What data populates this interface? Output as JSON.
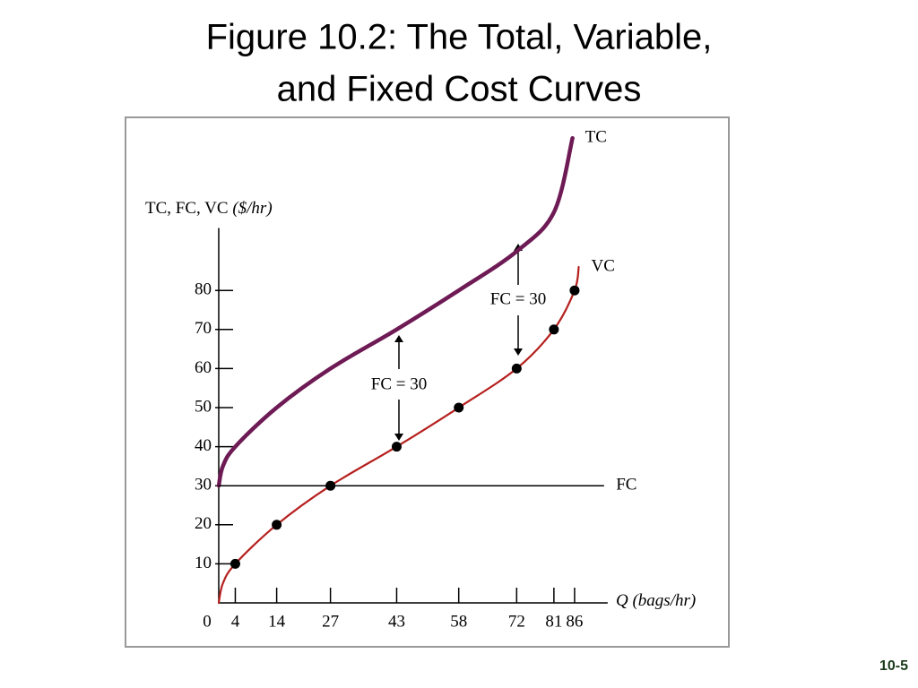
{
  "chart_data": {
    "type": "line",
    "title": [
      "Figure 10.2: The Total, Variable,",
      "and Fixed Cost Curves"
    ],
    "y_label": "TC, FC, VC",
    "y_unit": "($/hr)",
    "x_label": "Q",
    "x_unit": "(bags/hr)",
    "xlim": [
      0,
      94
    ],
    "ylim": [
      0,
      96
    ],
    "xticks": [
      0,
      4,
      14,
      27,
      43,
      58,
      72,
      81,
      86
    ],
    "yticks": [
      10,
      20,
      30,
      40,
      50,
      60,
      70,
      80
    ],
    "series": [
      {
        "name": "TC",
        "color": "#6e1a54",
        "x": [
          0,
          1,
          4,
          14,
          27,
          43,
          58,
          72,
          81,
          85.5
        ],
        "values": [
          30,
          35,
          40,
          50,
          60,
          70,
          80,
          90,
          100,
          119
        ]
      },
      {
        "name": "VC",
        "color": "#b5201e",
        "x": [
          0,
          1,
          4,
          14,
          27,
          43,
          58,
          72,
          81,
          86,
          87
        ],
        "values": [
          0,
          5,
          10,
          20,
          30,
          40,
          50,
          60,
          70,
          80,
          86
        ]
      },
      {
        "name": "FC",
        "color": "#000000",
        "x": [
          0,
          93
        ],
        "values": [
          30,
          30
        ]
      }
    ],
    "points": {
      "x": [
        4,
        14,
        27,
        43,
        58,
        72,
        81,
        86
      ],
      "values": [
        10,
        20,
        30,
        40,
        50,
        60,
        70,
        80
      ]
    },
    "annotations": [
      "FC = 30",
      "FC = 30"
    ],
    "page_number": "10-5"
  }
}
